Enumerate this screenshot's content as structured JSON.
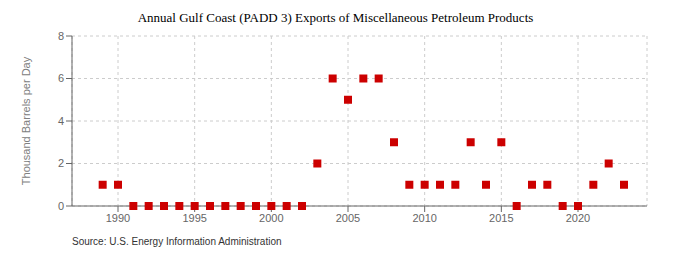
{
  "chart_data": {
    "type": "scatter",
    "title": "Annual Gulf Coast (PADD 3) Exports of Miscellaneous Petroleum Products",
    "ylabel": "Thousand Barrels per Day",
    "annotations": [
      "Source: U.S. Energy Information Administration"
    ],
    "x": [
      1989,
      1990,
      1991,
      1992,
      1993,
      1994,
      1995,
      1996,
      1997,
      1998,
      1999,
      2000,
      2001,
      2002,
      2003,
      2004,
      2005,
      2006,
      2007,
      2008,
      2009,
      2010,
      2011,
      2012,
      2013,
      2014,
      2015,
      2016,
      2017,
      2018,
      2019,
      2020,
      2021,
      2022,
      2023
    ],
    "values": [
      1,
      1,
      0,
      0,
      0,
      0,
      0,
      0,
      0,
      0,
      0,
      0,
      0,
      0,
      2,
      6,
      5,
      6,
      6,
      3,
      1,
      1,
      1,
      1,
      3,
      1,
      3,
      0,
      1,
      1,
      0,
      0,
      1,
      2,
      1
    ],
    "color": "#cc0000",
    "marker": "square",
    "xlim": [
      1987.0,
      2024.5
    ],
    "ylim": [
      0,
      8
    ],
    "xticks": [
      1990,
      1995,
      2000,
      2005,
      2010,
      2015,
      2020
    ],
    "yticks": [
      0,
      2,
      4,
      6,
      8
    ],
    "grid": true
  }
}
